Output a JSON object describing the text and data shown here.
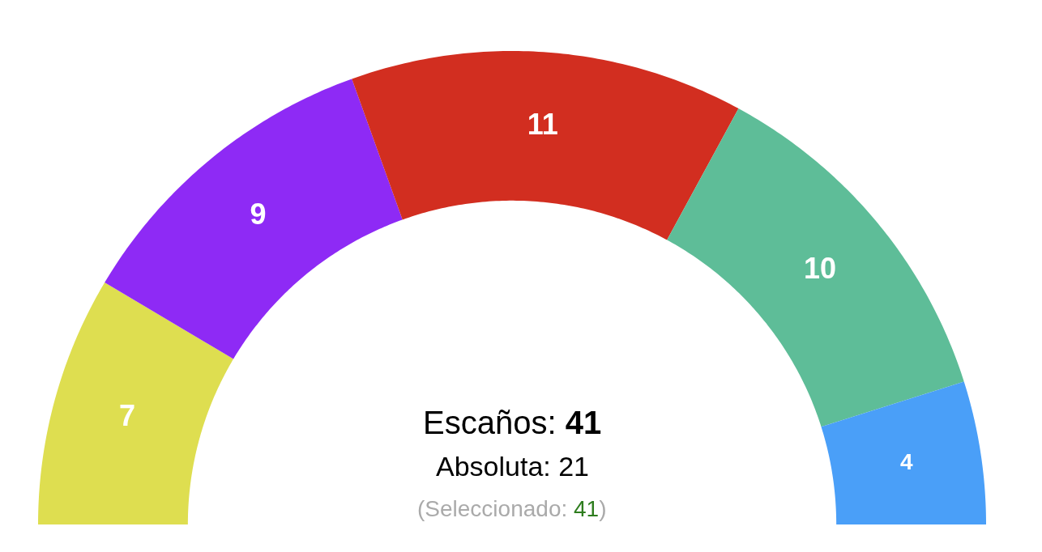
{
  "chart_data": {
    "type": "donut",
    "categories": [
      null,
      null,
      null,
      null,
      null
    ],
    "values": [
      7,
      9,
      11,
      10,
      4
    ],
    "colors": [
      "#dede50",
      "#8e2af5",
      "#d22e20",
      "#5ebd98",
      "#4a9ff8"
    ],
    "data_labels": true,
    "annotations": [
      "Escaños: 41",
      "Absoluta: 21",
      "(Seleccionado: 41)"
    ]
  }
}
